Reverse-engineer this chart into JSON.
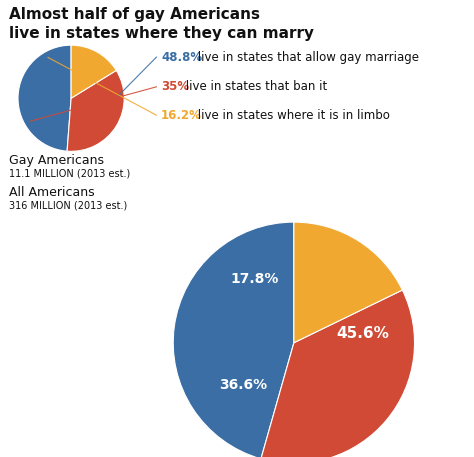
{
  "title_line1": "Almost half of gay Americans",
  "title_line2": "live in states where they can marry",
  "bg_color": "#ffffff",
  "gay_label": "Gay Americans",
  "gay_sublabel": "11.1 MILLION (2013 est.)",
  "all_label": "All Americans",
  "all_sublabel": "316 MILLION (2013 est.)",
  "gay_values": [
    48.8,
    35.0,
    16.2
  ],
  "all_values": [
    45.6,
    36.6,
    17.8
  ],
  "colors": [
    "#3a6ea5",
    "#d04a35",
    "#f0a830"
  ],
  "legend_pcts": [
    "48.8%",
    "35%",
    "16.2%"
  ],
  "legend_rest": [
    " live in states that allow gay marriage",
    " live in states that ban it",
    " live in states where it is in limbo"
  ],
  "legend_pct_colors": [
    "#3a6ea5",
    "#d04a35",
    "#f0a830"
  ],
  "all_pct_labels": [
    "45.6%",
    "36.6%",
    "17.8%"
  ],
  "all_pct_label_colors": [
    "#ffffff",
    "#ffffff",
    "#ffffff"
  ],
  "all_pct_offsets": [
    0.58,
    0.55,
    0.62
  ]
}
